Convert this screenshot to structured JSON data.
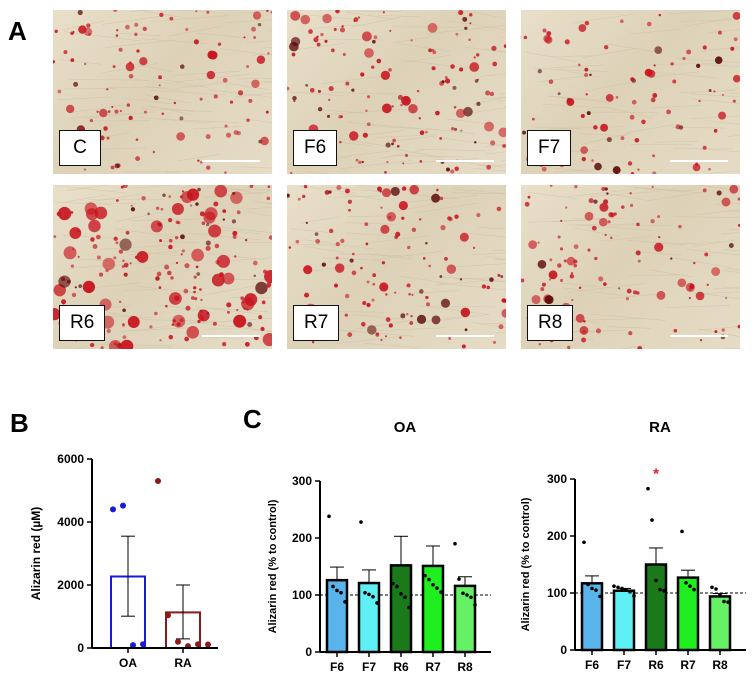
{
  "panels": {
    "a": {
      "letter": "A"
    },
    "b": {
      "letter": "B"
    },
    "c": {
      "letter": "C"
    }
  },
  "micrographs": [
    {
      "label": "C",
      "stain_density": 0.35
    },
    {
      "label": "F6",
      "stain_density": 0.5
    },
    {
      "label": "F7",
      "stain_density": 0.25
    },
    {
      "label": "R6",
      "stain_density": 0.9
    },
    {
      "label": "R7",
      "stain_density": 0.45
    },
    {
      "label": "R8",
      "stain_density": 0.4
    }
  ],
  "colors": {
    "OA": "#1a1adb",
    "RA": "#8b1a1a",
    "F6": "#5ab4ec",
    "F7": "#5ef0f4",
    "R6": "#1a7a1a",
    "R7": "#1fee1f",
    "R8": "#66f066",
    "significance": "#e02020",
    "stain": "#c8141e"
  },
  "chart_data": [
    {
      "id": "B",
      "type": "bar",
      "title": "",
      "xlabel": "",
      "ylabel": "Alizarin red (µM)",
      "ylim": [
        0,
        6000
      ],
      "yticks": [
        0,
        2000,
        4000,
        6000
      ],
      "categories": [
        "OA",
        "RA"
      ],
      "values": [
        2270,
        1130
      ],
      "error_upper": [
        3550,
        2000
      ],
      "error_lower": [
        1010,
        290
      ],
      "bar_style": "outline",
      "points": {
        "OA": [
          4400,
          4520,
          90,
          120
        ],
        "RA": [
          5300,
          1040,
          200,
          60,
          120,
          110
        ]
      }
    },
    {
      "id": "C-OA",
      "type": "bar",
      "title": "OA",
      "xlabel": "",
      "ylabel": "Alizarin red (% to control)",
      "ylim": [
        0,
        300
      ],
      "yticks": [
        0,
        100,
        200,
        300
      ],
      "reference_line": 100,
      "categories": [
        "F6",
        "F7",
        "R6",
        "R7",
        "R8"
      ],
      "values": [
        126,
        121,
        152,
        151,
        116
      ],
      "error_upper": [
        149,
        144,
        203,
        186,
        132
      ],
      "points": {
        "F6": [
          238,
          115,
          108,
          104,
          88
        ],
        "F7": [
          228,
          104,
          101,
          97,
          86
        ],
        "R6": [
          120,
          115,
          102,
          96,
          78
        ],
        "R7": [
          134,
          127,
          118,
          112,
          105
        ],
        "R8": [
          190,
          128,
          103,
          100,
          96,
          83
        ]
      },
      "significance": []
    },
    {
      "id": "C-RA",
      "type": "bar",
      "title": "RA",
      "xlabel": "",
      "ylabel": "Alizarin red (% to control)",
      "ylim": [
        0,
        300
      ],
      "yticks": [
        0,
        100,
        200,
        300
      ],
      "reference_line": 100,
      "categories": [
        "F6",
        "F7",
        "R6",
        "R7",
        "R8"
      ],
      "values": [
        117,
        104,
        150,
        127,
        94
      ],
      "error_upper": [
        130,
        108,
        179,
        140,
        99
      ],
      "points": {
        "F6": [
          189,
          115,
          108,
          105,
          94
        ],
        "F7": [
          112,
          110,
          108,
          105,
          102,
          95
        ],
        "R6": [
          283,
          228,
          122,
          106,
          104
        ],
        "R7": [
          208,
          118,
          112,
          106
        ],
        "R8": [
          110,
          107,
          97,
          85,
          84
        ]
      },
      "significance": [
        {
          "category": "R6",
          "symbol": "*"
        }
      ]
    }
  ]
}
